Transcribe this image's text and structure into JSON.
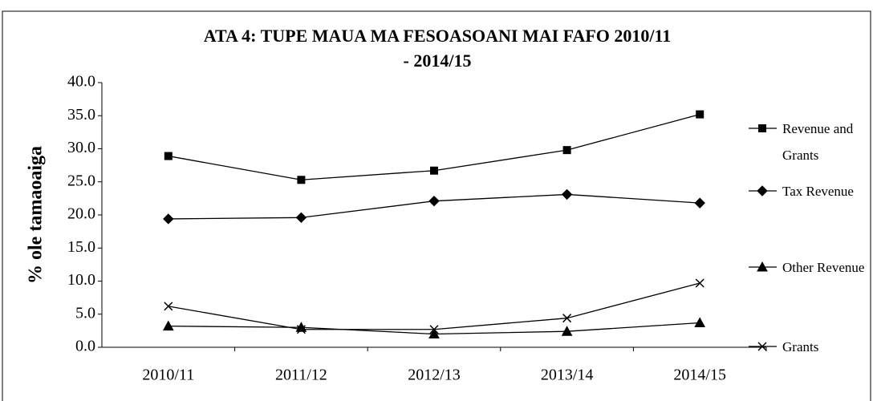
{
  "chart_data": {
    "type": "line",
    "title": [
      "ATA 4: TUPE MAUA MA FESOASOANI MAI FAFO 2010/11",
      "- 2014/15"
    ],
    "ylabel": "% ole tamaoaiga",
    "categories": [
      "2010/11",
      "2011/12",
      "2012/13",
      "2013/14",
      "2014/15"
    ],
    "series": [
      {
        "name": "Revenue and Grants",
        "color": "#000000",
        "marker": "square",
        "values": [
          28.9,
          25.3,
          26.7,
          29.8,
          35.2
        ]
      },
      {
        "name": "Tax Revenue",
        "color": "#000000",
        "marker": "diamond",
        "values": [
          19.4,
          19.6,
          22.1,
          23.1,
          21.8
        ]
      },
      {
        "name": "Other Revenue",
        "color": "#000000",
        "marker": "triangle",
        "values": [
          3.2,
          3.0,
          2.0,
          2.4,
          3.7
        ]
      },
      {
        "name": "Grants",
        "color": "#000000",
        "marker": "x",
        "values": [
          6.2,
          2.7,
          2.7,
          4.4,
          9.7
        ]
      }
    ],
    "ylim": [
      0,
      40
    ],
    "yticks": [
      {
        "value": 0,
        "label": "0.0"
      },
      {
        "value": 5,
        "label": "5.0"
      },
      {
        "value": 10,
        "label": "10.0"
      },
      {
        "value": 15,
        "label": "15.0"
      },
      {
        "value": 20,
        "label": "20.0"
      },
      {
        "value": 25,
        "label": "25.0"
      },
      {
        "value": 30,
        "label": "30.0"
      },
      {
        "value": 35,
        "label": "35.0"
      },
      {
        "value": 40,
        "label": "40.0"
      }
    ],
    "grid": false,
    "legend": "right"
  }
}
